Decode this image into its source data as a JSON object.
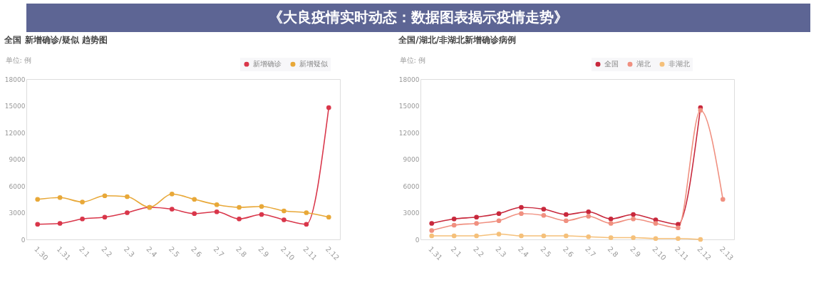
{
  "chart_data": [
    {
      "type": "line",
      "title": "全国 新增确诊/疑似 趋势图",
      "ylabel": "单位: 例",
      "annotations": [
        "《大良疫情实时动态：数据图表揭示疫情走势》"
      ],
      "categories": [
        "1.30",
        "1.31",
        "2.1",
        "2.2",
        "2.3",
        "2.4",
        "2.5",
        "2.6",
        "2.7",
        "2.8",
        "2.9",
        "2.10",
        "2.11",
        "2.12"
      ],
      "series": [
        {
          "name": "新增确诊",
          "color": "#d9364a",
          "values": [
            1700,
            1800,
            2300,
            2500,
            3000,
            3600,
            3400,
            2900,
            3100,
            2300,
            2800,
            2200,
            1700,
            14800
          ]
        },
        {
          "name": "新增疑似",
          "color": "#e8a838",
          "values": [
            4500,
            4700,
            4200,
            4900,
            4800,
            3600,
            5100,
            4500,
            3900,
            3600,
            3700,
            3200,
            3000,
            2500
          ]
        }
      ],
      "ylim": [
        0,
        18000
      ],
      "yticks": [
        0,
        3000,
        6000,
        9000,
        12000,
        15000,
        18000
      ],
      "grid": false,
      "legend": "top right",
      "marker": "circle",
      "line_style": "solid"
    },
    {
      "type": "line",
      "title": "全国/湖北/非湖北新增确诊病例",
      "ylabel": "单位: 例",
      "categories": [
        "1.31",
        "2.1",
        "2.2",
        "2.3",
        "2.4",
        "2.5",
        "2.6",
        "2.7",
        "2.8",
        "2.9",
        "2.10",
        "2.11",
        "2.12",
        "2.13"
      ],
      "series": [
        {
          "name": "全国",
          "color": "#c8283c",
          "values": [
            1800,
            2300,
            2500,
            2900,
            3600,
            3400,
            2800,
            3100,
            2300,
            2800,
            2200,
            1700,
            14800,
            null
          ]
        },
        {
          "name": "湖北",
          "color": "#f09080",
          "values": [
            1000,
            1600,
            1800,
            2100,
            2900,
            2700,
            2100,
            2600,
            1800,
            2300,
            1800,
            1300,
            14500,
            4500
          ]
        },
        {
          "name": "非湖北",
          "color": "#f5c07a",
          "values": [
            400,
            400,
            400,
            600,
            400,
            400,
            400,
            300,
            200,
            200,
            100,
            100,
            0,
            null
          ]
        }
      ],
      "ylim": [
        0,
        18000
      ],
      "yticks": [
        0,
        3000,
        6000,
        9000,
        12000,
        15000,
        18000
      ],
      "grid": false,
      "legend": "top right",
      "marker": "circle",
      "line_style": "solid"
    }
  ]
}
